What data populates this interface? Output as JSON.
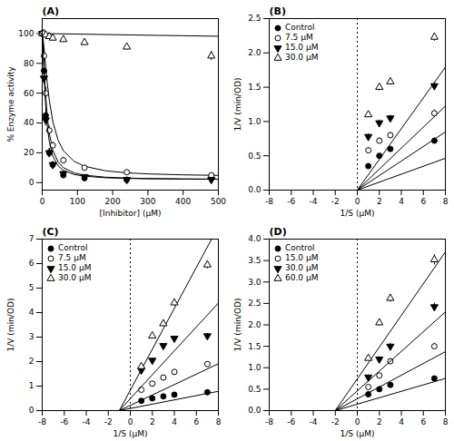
{
  "chart_data": [
    {
      "type": "scatter",
      "title": "(A)",
      "xlabel": "[Inhibitor] (μM)",
      "ylabel": "% Enzyme activity",
      "xlim": [
        0,
        500
      ],
      "ylim": [
        -5,
        110
      ],
      "xticks": [
        0,
        100,
        200,
        300,
        400,
        500
      ],
      "yticks": [
        0,
        20,
        40,
        60,
        80,
        100
      ],
      "grid": false,
      "series": [
        {
          "marker": "circle",
          "color": "black",
          "x": [
            0,
            5,
            10,
            20,
            30,
            60,
            120,
            240,
            480
          ],
          "values": [
            100,
            75,
            45,
            20,
            12,
            5,
            3,
            2,
            3
          ],
          "yerr": [
            3,
            5,
            4,
            3,
            2,
            1.5,
            1,
            1,
            1.5
          ],
          "fit": {
            "x": [
              0.01,
              1,
              2,
              3,
              5,
              7.5,
              10,
              15,
              20,
              30,
              45,
              60,
              90,
              120,
              180,
              240,
              300,
              400,
              500
            ],
            "values": [
              100.0,
              97.7,
              93.76,
              89.11,
              79.23,
              67.59,
              57.66,
              42.88,
              33.09,
              21.79,
              13.86,
              10.05,
              6.55,
              5.0,
              3.66,
              3.08,
              2.78,
              2.51,
              2.36
            ]
          }
        },
        {
          "marker": "circle_open",
          "color": "black",
          "x": [
            0,
            5,
            10,
            20,
            30,
            60,
            120,
            240,
            480
          ],
          "values": [
            100,
            85,
            60,
            35,
            25,
            15,
            10,
            7,
            5
          ],
          "yerr": [
            3,
            5,
            4,
            3,
            2,
            2,
            1.5,
            1.5,
            1.5
          ],
          "fit": {
            "x": [
              0.01,
              1,
              2,
              3,
              5,
              7.5,
              10,
              15,
              20,
              30,
              45,
              60,
              90,
              120,
              180,
              240,
              300,
              400,
              500
            ],
            "values": [
              100.0,
              99.08,
              97.44,
              95.4,
              90.62,
              84.06,
              77.48,
              65.42,
              55.43,
              41.03,
              28.46,
              21.44,
              14.35,
              10.99,
              7.93,
              6.59,
              5.87,
              5.22,
              4.88
            ]
          }
        },
        {
          "marker": "triangle_down",
          "color": "black",
          "x": [
            0,
            5,
            10,
            20,
            30,
            60,
            120,
            240,
            480
          ],
          "values": [
            100,
            70,
            42,
            20,
            12,
            6,
            4,
            2,
            2
          ],
          "yerr": [
            3,
            4,
            4,
            3,
            2,
            1.5,
            1,
            1,
            1
          ],
          "fit": {
            "x": [
              0.01,
              1,
              2,
              3,
              5,
              7.5,
              10,
              15,
              20,
              30,
              45,
              60,
              90,
              120,
              180,
              240,
              300,
              400,
              500
            ],
            "values": [
              100.0,
              97.0,
              91.95,
              86.17,
              74.4,
              61.41,
              51.0,
              36.54,
              27.6,
              17.82,
              11.29,
              8.24,
              5.5,
              4.3,
              3.27,
              2.83,
              2.59,
              2.39,
              2.28
            ]
          }
        },
        {
          "marker": "triangle_up_open",
          "color": "black",
          "x": [
            0,
            5,
            10,
            20,
            30,
            60,
            120,
            240,
            480
          ],
          "values": [
            100,
            100,
            99,
            98,
            97,
            96,
            94,
            91,
            85
          ],
          "yerr": [
            2,
            2,
            2,
            2,
            2,
            2,
            2,
            2,
            3
          ],
          "fit": {
            "x": [
              0.01,
              50,
              100,
              200,
              300,
              400,
              500
            ],
            "values": [
              100.0,
              99.8,
              99.61,
              99.23,
              98.87,
              98.52,
              98.18
            ]
          }
        }
      ]
    },
    {
      "type": "scatter",
      "title": "(B)",
      "xlabel": "1/S (μM)",
      "ylabel": "1/V (min/OD)",
      "xlim": [
        -8,
        8
      ],
      "ylim": [
        0,
        2.5
      ],
      "xticks": [
        -8,
        -6,
        -4,
        -2,
        0,
        2,
        4,
        6,
        8
      ],
      "yticks": [
        {
          "value": 0,
          "label": "0.0"
        },
        0.5,
        {
          "value": 1,
          "label": "1.0"
        },
        1.5,
        {
          "value": 2,
          "label": "2.0"
        },
        2.5
      ],
      "grid": false,
      "legend": "upper left",
      "vline": 0,
      "series": [
        {
          "name": "Control",
          "marker": "circle",
          "color": "black",
          "x": [
            1,
            2,
            3,
            7
          ],
          "values": [
            0.35,
            0.5,
            0.6,
            0.72
          ],
          "yerr": [
            0.03,
            0.03,
            0.03,
            0.04
          ],
          "fit": {
            "x": [
              0,
              8
            ],
            "values": [
              0,
              0.464
            ]
          }
        },
        {
          "name": "7.5 μM",
          "marker": "circle_open",
          "color": "black",
          "x": [
            1,
            2,
            3,
            7
          ],
          "values": [
            0.58,
            0.72,
            0.8,
            1.12
          ],
          "yerr": [
            0.04,
            0.04,
            0.04,
            0.05
          ],
          "fit": {
            "x": [
              0,
              8
            ],
            "values": [
              0,
              0.848
            ]
          }
        },
        {
          "name": "15.0 μM",
          "marker": "triangle_down",
          "color": "black",
          "x": [
            1,
            2,
            3,
            7
          ],
          "values": [
            0.78,
            0.98,
            1.05,
            1.52
          ],
          "yerr": [
            0.04,
            0.04,
            0.04,
            0.05
          ],
          "fit": {
            "x": [
              0,
              8
            ],
            "values": [
              0,
              1.224
            ]
          }
        },
        {
          "name": "30.0 μM",
          "marker": "triangle_up_open",
          "color": "black",
          "x": [
            1,
            2,
            3,
            7
          ],
          "values": [
            1.1,
            1.5,
            1.58,
            2.23
          ],
          "yerr": [
            0.04,
            0.05,
            0.05,
            0.06
          ],
          "fit": {
            "x": [
              0,
              8
            ],
            "values": [
              0,
              1.792
            ]
          }
        }
      ]
    },
    {
      "type": "scatter",
      "title": "(C)",
      "xlabel": "1/S (μM)",
      "ylabel": "1/V (min/OD)",
      "xlim": [
        -8,
        8
      ],
      "ylim": [
        0,
        7
      ],
      "xticks": [
        -8,
        -6,
        -4,
        -2,
        0,
        2,
        4,
        6,
        8
      ],
      "yticks": [
        0,
        1,
        2,
        3,
        4,
        5,
        6,
        7
      ],
      "grid": false,
      "legend": "upper left",
      "vline": 0,
      "series": [
        {
          "name": "Control",
          "marker": "circle",
          "color": "black",
          "x": [
            1,
            2,
            3,
            4,
            7
          ],
          "values": [
            0.4,
            0.5,
            0.58,
            0.65,
            0.75
          ],
          "yerr": [
            0.04,
            0.04,
            0.04,
            0.04,
            0.04
          ],
          "fit": {
            "x": [
              -1,
              8
            ],
            "values": [
              0,
              0.7875
            ]
          }
        },
        {
          "name": "7.5 μM",
          "marker": "circle_open",
          "color": "black",
          "x": [
            1,
            2,
            3,
            4,
            7
          ],
          "values": [
            0.85,
            1.1,
            1.35,
            1.58,
            1.9
          ],
          "yerr": [
            0.05,
            0.05,
            0.05,
            0.06,
            0.07
          ],
          "fit": {
            "x": [
              -1,
              8
            ],
            "values": [
              0,
              1.9125
            ]
          }
        },
        {
          "name": "15.0 μM",
          "marker": "triangle_down",
          "color": "black",
          "x": [
            1,
            2,
            3,
            4,
            7
          ],
          "values": [
            1.65,
            2.05,
            2.65,
            2.95,
            3.05
          ],
          "yerr": [
            0.07,
            0.08,
            0.09,
            0.09,
            0.1
          ],
          "fit": {
            "x": [
              -1,
              8
            ],
            "values": [
              0,
              4.3875
            ]
          }
        },
        {
          "name": "30.0 μM",
          "marker": "triangle_up_open",
          "color": "black",
          "x": [
            1,
            2,
            3,
            4,
            7
          ],
          "values": [
            1.8,
            3.05,
            3.55,
            4.4,
            5.95
          ],
          "yerr": [
            0.08,
            0.1,
            0.11,
            0.13,
            0.16
          ],
          "fit": {
            "x": [
              -1,
              7.383
            ],
            "values": [
              0,
              7
            ]
          }
        }
      ]
    },
    {
      "type": "scatter",
      "title": "(D)",
      "xlabel": "1/S (μM)",
      "ylabel": "1/V (min/OD)",
      "xlim": [
        -8,
        8
      ],
      "ylim": [
        0,
        4.0
      ],
      "xticks": [
        -8,
        -6,
        -4,
        -2,
        0,
        2,
        4,
        6,
        8
      ],
      "yticks": [
        {
          "value": 0,
          "label": "0.0"
        },
        0.5,
        {
          "value": 1,
          "label": "1.0"
        },
        1.5,
        {
          "value": 2,
          "label": "2.0"
        },
        2.5,
        {
          "value": 3,
          "label": "3.0"
        },
        3.5,
        {
          "value": 4,
          "label": "4.0"
        }
      ],
      "grid": false,
      "legend": "upper left",
      "vline": 0,
      "series": [
        {
          "name": "Control",
          "marker": "circle",
          "color": "black",
          "x": [
            1,
            2,
            3,
            7
          ],
          "values": [
            0.38,
            0.5,
            0.6,
            0.75
          ],
          "yerr": [
            0.03,
            0.03,
            0.03,
            0.04
          ],
          "fit": {
            "x": [
              -2,
              8
            ],
            "values": [
              0,
              0.75
            ]
          }
        },
        {
          "name": "15.0 μM",
          "marker": "circle_open",
          "color": "black",
          "x": [
            1,
            2,
            3,
            7
          ],
          "values": [
            0.55,
            0.82,
            1.15,
            1.5
          ],
          "yerr": [
            0.04,
            0.05,
            0.06,
            0.07
          ],
          "fit": {
            "x": [
              -2,
              8
            ],
            "values": [
              0,
              1.375
            ]
          }
        },
        {
          "name": "30.0 μM",
          "marker": "triangle_down",
          "color": "black",
          "x": [
            1,
            2,
            3,
            7
          ],
          "values": [
            0.78,
            1.2,
            1.5,
            2.42
          ],
          "yerr": [
            0.05,
            0.06,
            0.07,
            0.09
          ],
          "fit": {
            "x": [
              -2,
              8
            ],
            "values": [
              0,
              2.3
            ]
          }
        },
        {
          "name": "60.0 μM",
          "marker": "triangle_up_open",
          "color": "black",
          "x": [
            1,
            2,
            3,
            7
          ],
          "values": [
            1.22,
            2.05,
            2.62,
            3.52
          ],
          "yerr": [
            0.06,
            0.08,
            0.09,
            0.12
          ],
          "fit": {
            "x": [
              -2,
              8
            ],
            "values": [
              0,
              3.7
            ]
          }
        }
      ]
    }
  ]
}
